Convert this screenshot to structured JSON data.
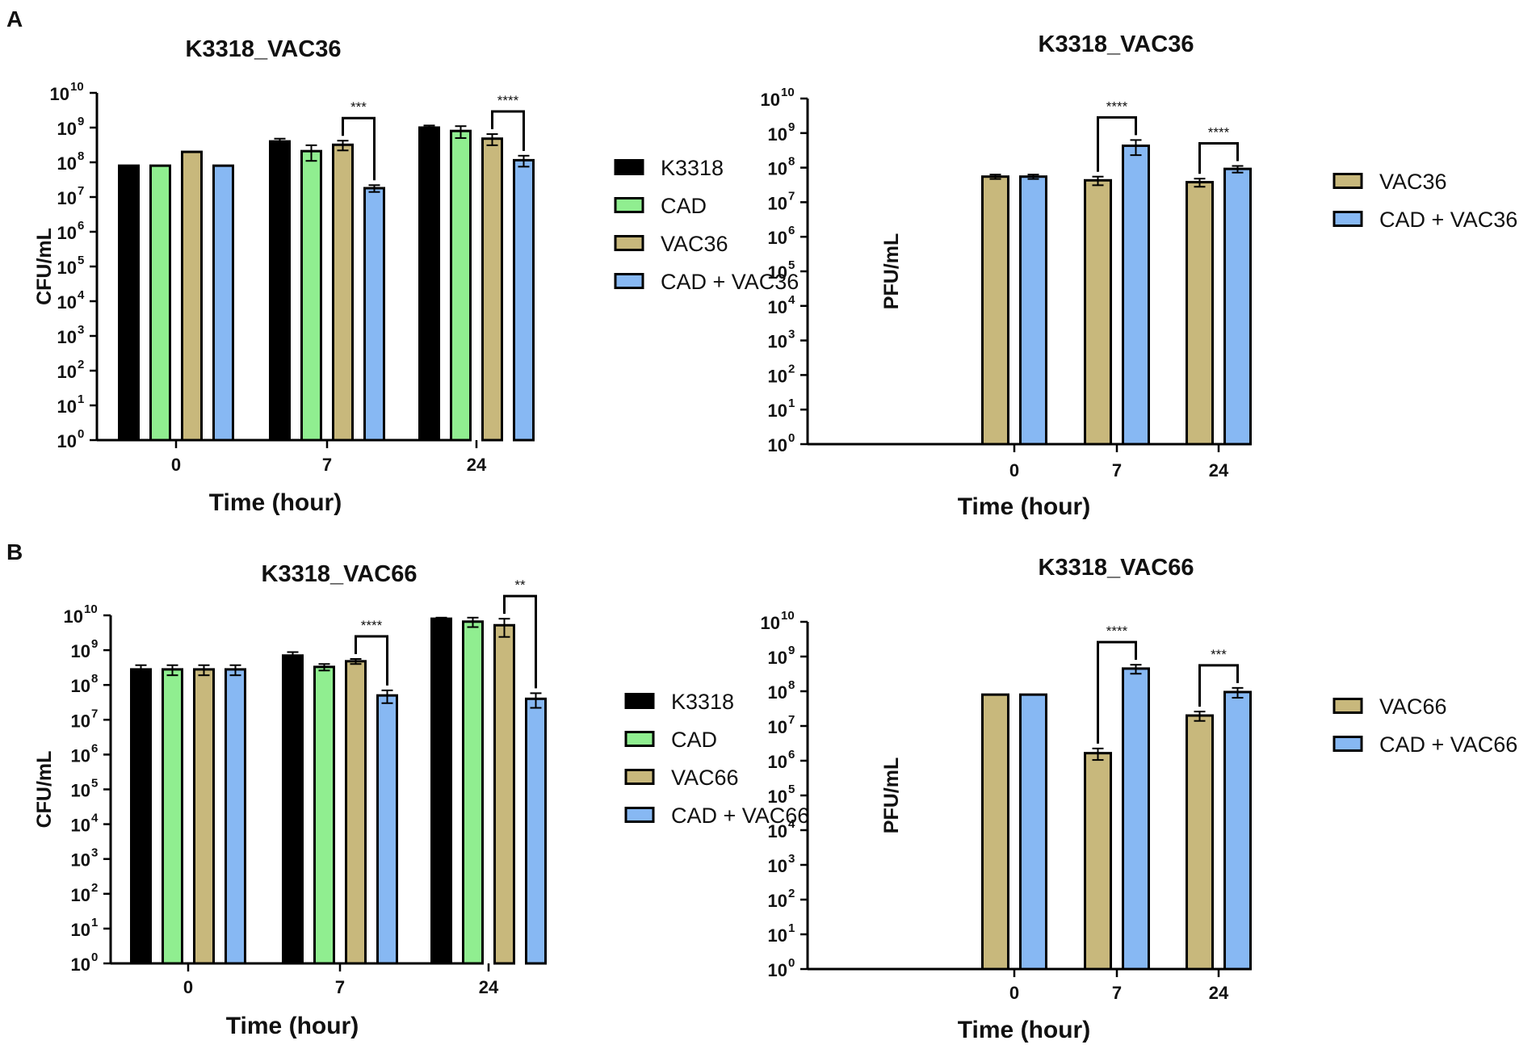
{
  "figure": {
    "panel_labels": [
      "A",
      "B"
    ]
  },
  "colors": {
    "K3318": "#000000",
    "CAD": "#90ee90",
    "VAC": "#c8b87c",
    "CAD_VAC": "#87b8f3",
    "stroke": "#000000"
  },
  "chart_data": [
    {
      "id": "A-left",
      "type": "bar",
      "scale": "log10",
      "title": "K3318_VAC36",
      "xlabel": "Time (hour)",
      "ylabel": "CFU/mL",
      "ylim_exponent": [
        0,
        10
      ],
      "ytick_base": "10",
      "categories": [
        "0",
        "7",
        "24"
      ],
      "series": [
        {
          "name": "K3318",
          "color_key": "K3318",
          "values": [
            80000000.0,
            400000000.0,
            1000000000.0
          ],
          "errors": [
            0,
            80000000.0,
            150000000.0
          ]
        },
        {
          "name": "CAD",
          "color_key": "CAD",
          "values": [
            80000000.0,
            210000000.0,
            800000000.0
          ],
          "errors": [
            0,
            100000000.0,
            300000000.0
          ]
        },
        {
          "name": "VAC36",
          "color_key": "VAC",
          "values": [
            200000000.0,
            320000000.0,
            480000000.0
          ],
          "errors": [
            0,
            100000000.0,
            170000000.0
          ]
        },
        {
          "name": "CAD + VAC36",
          "color_key": "CAD_VAC",
          "values": [
            80000000.0,
            18000000.0,
            115000000.0
          ],
          "errors": [
            0,
            4000000.0,
            40000000.0
          ]
        }
      ],
      "significance": [
        {
          "category": "7",
          "from": "VAC36",
          "to": "CAD + VAC36",
          "label": "***"
        },
        {
          "category": "24",
          "from": "VAC36",
          "to": "CAD + VAC36",
          "label": "****"
        }
      ]
    },
    {
      "id": "A-right",
      "type": "bar",
      "scale": "log10",
      "title": "K3318_VAC36",
      "xlabel": "Time (hour)",
      "ylabel": "PFU/mL",
      "ylim_exponent": [
        0,
        10
      ],
      "ytick_base": "10",
      "categories": [
        "0",
        "7",
        "24"
      ],
      "series": [
        {
          "name": "VAC36",
          "color_key": "VAC",
          "values": [
            55000000.0,
            43000000.0,
            38000000.0
          ],
          "errors": [
            8000000.0,
            12000000.0,
            10000000.0
          ]
        },
        {
          "name": "CAD + VAC36",
          "color_key": "CAD_VAC",
          "values": [
            55000000.0,
            430000000.0,
            92000000.0
          ],
          "errors": [
            8000000.0,
            200000000.0,
            20000000.0
          ]
        }
      ],
      "significance": [
        {
          "category": "7",
          "from": "VAC36",
          "to": "CAD + VAC36",
          "label": "****"
        },
        {
          "category": "24",
          "from": "VAC36",
          "to": "CAD + VAC36",
          "label": "****"
        }
      ]
    },
    {
      "id": "B-left",
      "type": "bar",
      "scale": "log10",
      "title": "K3318_VAC66",
      "xlabel": "Time (hour)",
      "ylabel": "CFU/mL",
      "ylim_exponent": [
        0,
        10
      ],
      "ytick_base": "10",
      "categories": [
        "0",
        "7",
        "24"
      ],
      "series": [
        {
          "name": "K3318",
          "color_key": "K3318",
          "values": [
            280000000.0,
            700000000.0,
            8000000000.0
          ],
          "errors": [
            90000000.0,
            180000000.0,
            600000000.0
          ]
        },
        {
          "name": "CAD",
          "color_key": "CAD",
          "values": [
            280000000.0,
            330000000.0,
            6600000000.0
          ],
          "errors": [
            90000000.0,
            70000000.0,
            2000000000.0
          ]
        },
        {
          "name": "VAC66",
          "color_key": "VAC",
          "values": [
            280000000.0,
            480000000.0,
            5200000000.0
          ],
          "errors": [
            90000000.0,
            80000000.0,
            2800000000.0
          ]
        },
        {
          "name": "CAD + VAC66",
          "color_key": "CAD_VAC",
          "values": [
            280000000.0,
            50000000.0,
            40000000.0
          ],
          "errors": [
            90000000.0,
            20000000.0,
            18000000.0
          ]
        }
      ],
      "significance": [
        {
          "category": "7",
          "from": "VAC66",
          "to": "CAD + VAC66",
          "label": "****"
        },
        {
          "category": "24",
          "from": "VAC66",
          "to": "CAD + VAC66",
          "label": "**"
        }
      ]
    },
    {
      "id": "B-right",
      "type": "bar",
      "scale": "log10",
      "title": "K3318_VAC66",
      "xlabel": "Time (hour)",
      "ylabel": "PFU/mL",
      "ylim_exponent": [
        0,
        10
      ],
      "ytick_base": "10",
      "categories": [
        "0",
        "7",
        "24"
      ],
      "series": [
        {
          "name": "VAC66",
          "color_key": "VAC",
          "values": [
            80000000.0,
            1650000.0,
            20000000.0
          ],
          "errors": [
            0,
            600000.0,
            6000000.0
          ]
        },
        {
          "name": "CAD + VAC66",
          "color_key": "CAD_VAC",
          "values": [
            80000000.0,
            450000000.0,
            95000000.0
          ],
          "errors": [
            0,
            130000000.0,
            30000000.0
          ]
        }
      ],
      "significance": [
        {
          "category": "7",
          "from": "VAC66",
          "to": "CAD + VAC66",
          "label": "****"
        },
        {
          "category": "24",
          "from": "VAC66",
          "to": "CAD + VAC66",
          "label": "***"
        }
      ]
    }
  ]
}
